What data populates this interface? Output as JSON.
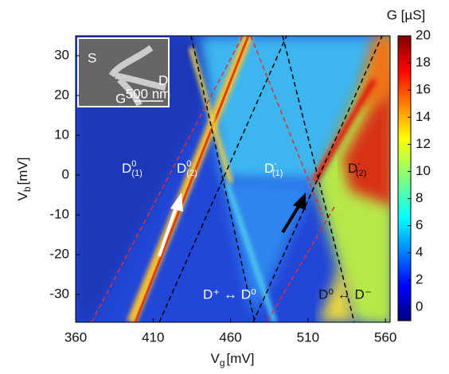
{
  "chart_data": {
    "type": "heatmap",
    "xlabel": {
      "main": "V",
      "sub": "g",
      "unit": "[mV]"
    },
    "ylabel": {
      "main": "V",
      "sub": "b",
      "unit": "[mV]"
    },
    "xlim": [
      360,
      563
    ],
    "xticks": [
      360,
      410,
      460,
      510,
      560
    ],
    "ylim": [
      -37,
      35
    ],
    "yticks": [
      -30,
      -20,
      -10,
      0,
      10,
      20,
      30
    ],
    "colorbar": {
      "title": "G [µS]",
      "lim": [
        -1,
        20
      ],
      "ticks": [
        0,
        2,
        4,
        6,
        8,
        10,
        12,
        14,
        16,
        18,
        20
      ]
    },
    "annotations": [
      {
        "base": "D",
        "sup": "0",
        "sub": "(1)"
      },
      {
        "base": "D",
        "sup": "0",
        "sub": "(2)"
      },
      {
        "base": "D",
        "sup": "-",
        "sub": "(1)"
      },
      {
        "base": "D",
        "sup": "-",
        "sub": "(2)"
      },
      {
        "text": "D⁺ ↔ D⁰"
      },
      {
        "text": "D⁰ ↔ D⁻"
      }
    ],
    "inset": {
      "labels": [
        "S",
        "D",
        "G",
        "500 nm"
      ]
    }
  }
}
